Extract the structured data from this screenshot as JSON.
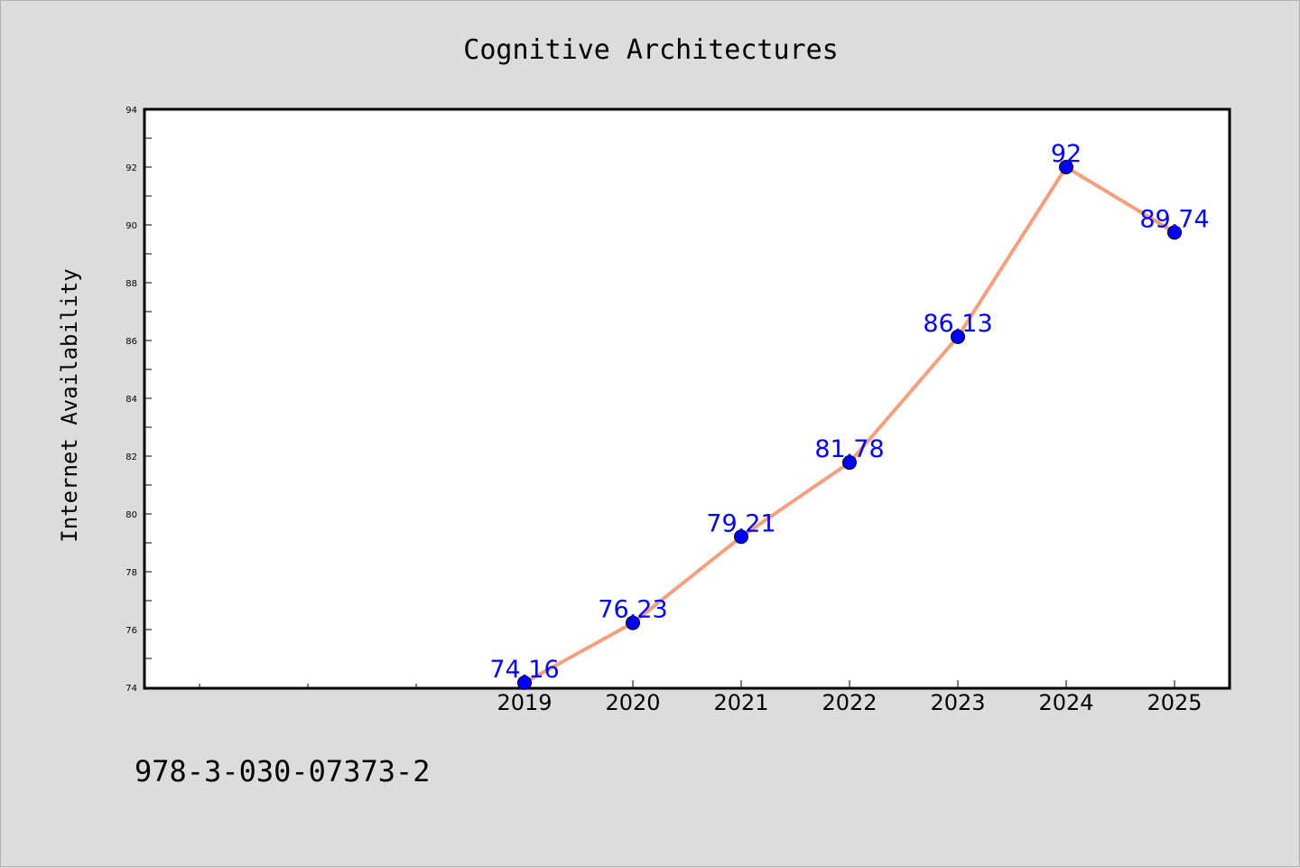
{
  "chart_data": {
    "type": "line",
    "title": "Cognitive Architectures",
    "xlabel": "",
    "ylabel": "Internet Availability",
    "categories": [
      "2019",
      "2020",
      "2021",
      "2022",
      "2023",
      "2024",
      "2025"
    ],
    "series": [
      {
        "values": [
          74.16,
          76.23,
          79.21,
          81.78,
          86.13,
          92,
          89.74
        ],
        "labels": [
          "74.16",
          "76.23",
          "79.21",
          "81.78",
          "86.13",
          "92",
          "89.74"
        ],
        "line_color": "#f4a07e",
        "marker_color": "#0000ff"
      }
    ],
    "ylim": [
      74,
      94
    ],
    "yticks": [
      "74",
      "76",
      "78",
      "80",
      "82",
      "84",
      "86",
      "88",
      "90",
      "92",
      "94"
    ],
    "grid": false,
    "legend": "none"
  },
  "footer": {
    "isbn": "978-3-030-07373-2"
  },
  "colors": {
    "background": "#dcdcdc",
    "plot_area": "#ffffff",
    "line": "#f4a07e",
    "marker": "#0000ff",
    "data_label": "#0000ff"
  }
}
